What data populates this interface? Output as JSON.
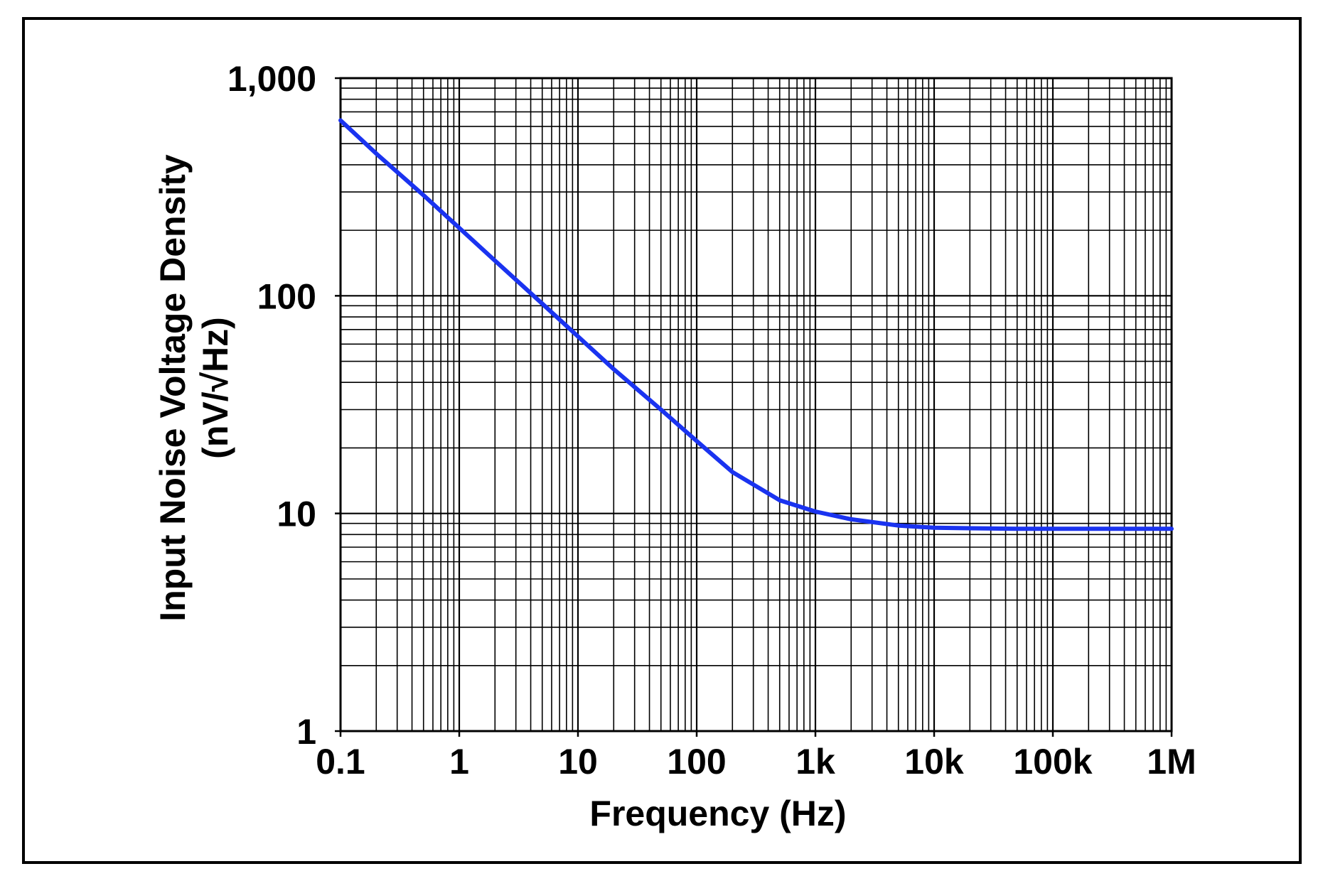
{
  "chart_data": {
    "type": "line",
    "title": "",
    "xlabel": "Frequency (Hz)",
    "ylabel": "Input Noise Voltage Density",
    "ylabel_unit": "(nV/√Hz)",
    "x_scale": "log",
    "y_scale": "log",
    "xlim": [
      0.1,
      1000000
    ],
    "ylim": [
      1,
      1000
    ],
    "x_ticks": [
      {
        "value": 0.1,
        "label": "0.1"
      },
      {
        "value": 1,
        "label": "1"
      },
      {
        "value": 10,
        "label": "10"
      },
      {
        "value": 100,
        "label": "100"
      },
      {
        "value": 1000,
        "label": "1k"
      },
      {
        "value": 10000,
        "label": "10k"
      },
      {
        "value": 100000,
        "label": "100k"
      },
      {
        "value": 1000000,
        "label": "1M"
      }
    ],
    "y_ticks": [
      {
        "value": 1,
        "label": "1"
      },
      {
        "value": 10,
        "label": "10"
      },
      {
        "value": 100,
        "label": "100"
      },
      {
        "value": 1000,
        "label": "1,000"
      }
    ],
    "grid": true,
    "legend": "none",
    "series": [
      {
        "color": "#1a33f0",
        "x": [
          0.1,
          0.2,
          0.5,
          1,
          2,
          5,
          10,
          20,
          50,
          100,
          200,
          500,
          1000,
          2000,
          5000,
          10000,
          20000,
          50000,
          100000,
          200000,
          500000,
          1000000
        ],
        "y": [
          640,
          450,
          290,
          205,
          145,
          92,
          65,
          46,
          30,
          21.5,
          15.5,
          11.5,
          10.2,
          9.4,
          8.8,
          8.6,
          8.55,
          8.5,
          8.5,
          8.5,
          8.5,
          8.5
        ]
      }
    ]
  }
}
